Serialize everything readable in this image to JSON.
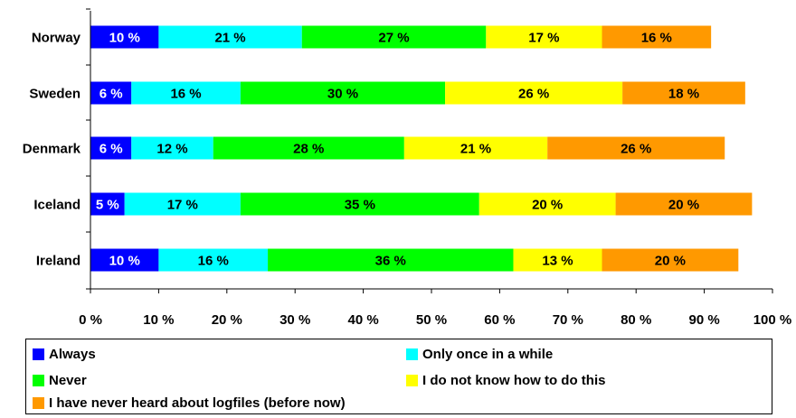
{
  "chart_data": {
    "type": "bar",
    "orientation": "horizontal",
    "stacked": true,
    "title": "",
    "xlabel": "",
    "ylabel": "",
    "categories": [
      "Norway",
      "Sweden",
      "Denmark",
      "Iceland",
      "Ireland"
    ],
    "series": [
      {
        "name": "Always",
        "color": "#0000ff",
        "values": [
          10,
          6,
          6,
          5,
          10
        ]
      },
      {
        "name": "Only once in a while",
        "color": "#00ffff",
        "values": [
          21,
          16,
          12,
          17,
          16
        ]
      },
      {
        "name": "Never",
        "color": "#00ff00",
        "values": [
          27,
          30,
          28,
          35,
          36
        ]
      },
      {
        "name": "I do not know how to do this",
        "color": "#ffff00",
        "values": [
          17,
          26,
          21,
          20,
          13
        ]
      },
      {
        "name": "I have never heard about logfiles (before now)",
        "color": "#ff9900",
        "values": [
          16,
          18,
          26,
          20,
          20
        ]
      }
    ],
    "xlim": [
      0,
      100
    ],
    "x_ticks": [
      0,
      10,
      20,
      30,
      40,
      50,
      60,
      70,
      80,
      90,
      100
    ],
    "x_tick_labels": [
      "0 %",
      "10 %",
      "20 %",
      "30 %",
      "40 %",
      "50 %",
      "60 %",
      "70 %",
      "80 %",
      "90 %",
      "100 %"
    ],
    "value_label_suffix": " %",
    "grid": false,
    "legend_position": "bottom"
  },
  "legend": {
    "items": [
      {
        "label": "Always",
        "color": "#0000ff"
      },
      {
        "label": "Only once in a while",
        "color": "#00ffff"
      },
      {
        "label": "Never",
        "color": "#00ff00"
      },
      {
        "label": "I do not know how to do this",
        "color": "#ffff00"
      },
      {
        "label": "I have never heard about logfiles (before now)",
        "color": "#ff9900"
      }
    ]
  }
}
